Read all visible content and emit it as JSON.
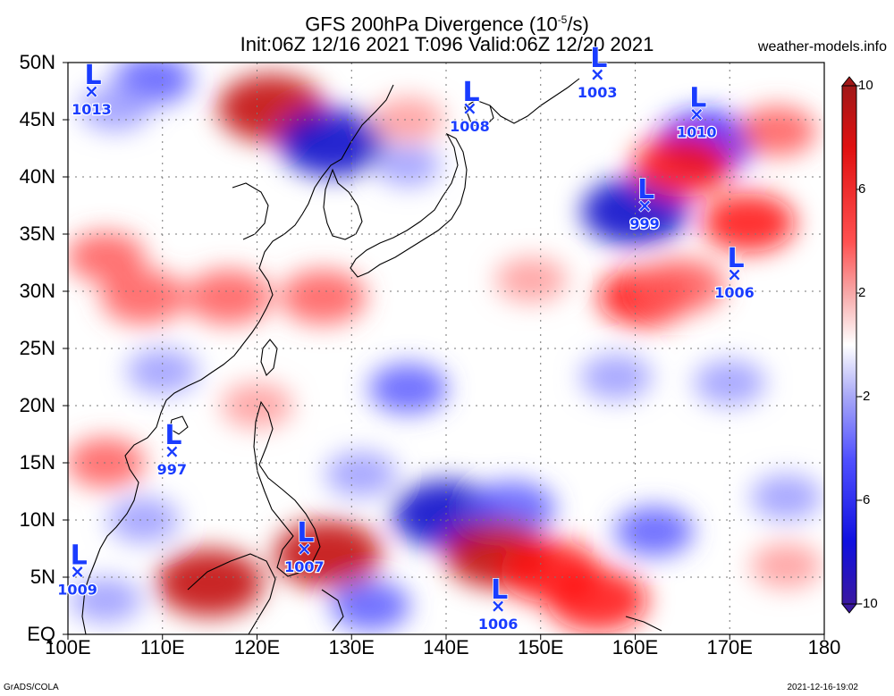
{
  "title": {
    "line1": "GFS 200hPa Divergence (10",
    "line1_exp": "-5",
    "line1_tail": "/s)",
    "line2": "Init:06Z 12/16 2021 T:096 Valid:06Z 12/20 2021"
  },
  "source": "weather-models.info",
  "footer_left": "GrADS/COLA",
  "footer_right": "2021-12-16-19:02",
  "axes": {
    "lat_labels": [
      "50N",
      "45N",
      "40N",
      "35N",
      "30N",
      "25N",
      "20N",
      "15N",
      "10N",
      "5N",
      "EQ"
    ],
    "lat_values": [
      50,
      45,
      40,
      35,
      30,
      25,
      20,
      15,
      10,
      5,
      0
    ],
    "lon_labels": [
      "100E",
      "110E",
      "120E",
      "130E",
      "140E",
      "150E",
      "160E",
      "170E",
      "180"
    ],
    "lon_values": [
      100,
      110,
      120,
      130,
      140,
      150,
      160,
      170,
      180
    ]
  },
  "colorbar": {
    "labels": [
      "10",
      "6",
      "2",
      "-2",
      "-6",
      "-10"
    ],
    "values": [
      10,
      6,
      2,
      -2,
      -6,
      -10
    ],
    "colors": [
      "#a01818",
      "#e01010",
      "#ff5050",
      "#f7a8a8",
      "#ffffff",
      "#a8a8f7",
      "#5050ff",
      "#1010e0",
      "#3a18a0"
    ]
  },
  "lows": [
    {
      "label": "L",
      "pressure": "1013",
      "lon": 102.5,
      "lat": 47.5
    },
    {
      "label": "L",
      "pressure": "1008",
      "lon": 142.5,
      "lat": 46.0
    },
    {
      "label": "L",
      "pressure": "1003",
      "lon": 156.0,
      "lat": 49.0
    },
    {
      "label": "L",
      "pressure": "1010",
      "lon": 166.5,
      "lat": 45.5
    },
    {
      "label": "L",
      "pressure": "999",
      "lon": 161.0,
      "lat": 37.5
    },
    {
      "label": "L",
      "pressure": "1006",
      "lon": 170.5,
      "lat": 31.5
    },
    {
      "label": "L",
      "pressure": "997",
      "lon": 111.0,
      "lat": 16.0
    },
    {
      "label": "L",
      "pressure": "1007",
      "lon": 125.0,
      "lat": 7.5
    },
    {
      "label": "L",
      "pressure": "1009",
      "lon": 101.0,
      "lat": 5.5
    },
    {
      "label": "L",
      "pressure": "1006",
      "lon": 145.5,
      "lat": 2.5
    }
  ],
  "field_blobs": [
    {
      "lon": 121.5,
      "lat": 46.0,
      "value": 8
    },
    {
      "lon": 128.0,
      "lat": 43.0,
      "value": -8
    },
    {
      "lon": 109.0,
      "lat": 48.5,
      "value": -4
    },
    {
      "lon": 105.0,
      "lat": 46.0,
      "value": -3
    },
    {
      "lon": 136.0,
      "lat": 41.0,
      "value": -2
    },
    {
      "lon": 136.0,
      "lat": 45.0,
      "value": 3
    },
    {
      "lon": 160.0,
      "lat": 37.0,
      "value": -8
    },
    {
      "lon": 167.5,
      "lat": 43.0,
      "value": -7
    },
    {
      "lon": 165.0,
      "lat": 41.0,
      "value": 7
    },
    {
      "lon": 172.0,
      "lat": 36.0,
      "value": 6
    },
    {
      "lon": 161.0,
      "lat": 29.5,
      "value": 6
    },
    {
      "lon": 165.0,
      "lat": 30.5,
      "value": 5
    },
    {
      "lon": 175.0,
      "lat": 44.0,
      "value": 4
    },
    {
      "lon": 108.0,
      "lat": 29.5,
      "value": 5
    },
    {
      "lon": 117.0,
      "lat": 29.5,
      "value": 5
    },
    {
      "lon": 104.0,
      "lat": 33.0,
      "value": 4
    },
    {
      "lon": 127.0,
      "lat": 29.5,
      "value": 5
    },
    {
      "lon": 149.0,
      "lat": 31.0,
      "value": 3
    },
    {
      "lon": 136.0,
      "lat": 21.5,
      "value": -4
    },
    {
      "lon": 158.0,
      "lat": 22.5,
      "value": -3
    },
    {
      "lon": 170.0,
      "lat": 22.0,
      "value": -3
    },
    {
      "lon": 140.0,
      "lat": 10.5,
      "value": -8
    },
    {
      "lon": 147.0,
      "lat": 11.0,
      "value": -5
    },
    {
      "lon": 145.5,
      "lat": 7.0,
      "value": 8
    },
    {
      "lon": 151.0,
      "lat": 5.5,
      "value": 7
    },
    {
      "lon": 156.0,
      "lat": 3.0,
      "value": 7
    },
    {
      "lon": 127.5,
      "lat": 7.0,
      "value": 8
    },
    {
      "lon": 115.0,
      "lat": 4.5,
      "value": 8
    },
    {
      "lon": 108.0,
      "lat": 10.0,
      "value": -3
    },
    {
      "lon": 131.0,
      "lat": 14.0,
      "value": -3
    },
    {
      "lon": 162.0,
      "lat": 9.0,
      "value": -4
    },
    {
      "lon": 176.0,
      "lat": 12.0,
      "value": -3
    },
    {
      "lon": 176.0,
      "lat": 6.0,
      "value": 3
    },
    {
      "lon": 120.0,
      "lat": 20.0,
      "value": 3
    },
    {
      "lon": 104.0,
      "lat": 15.0,
      "value": 4
    },
    {
      "lon": 110.0,
      "lat": 23.0,
      "value": -3
    },
    {
      "lon": 104.0,
      "lat": 3.0,
      "value": -3
    },
    {
      "lon": 132.0,
      "lat": 2.5,
      "value": -4
    }
  ]
}
